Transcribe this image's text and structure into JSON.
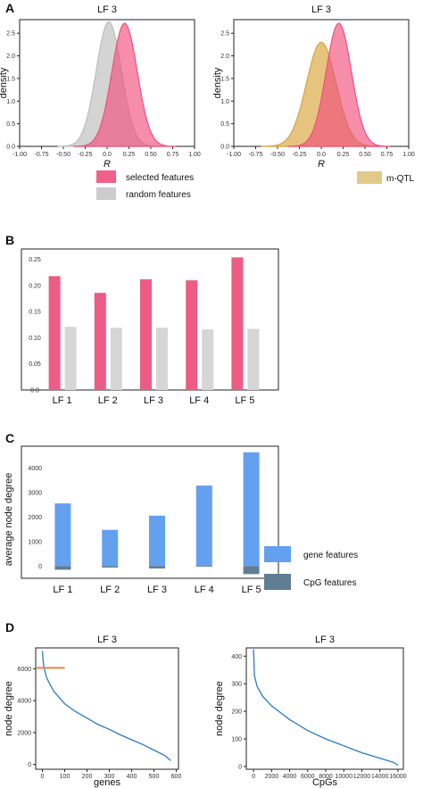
{
  "panels": {
    "A": {
      "label": "A"
    },
    "B": {
      "label": "B"
    },
    "C": {
      "label": "C"
    },
    "D": {
      "label": "D"
    }
  },
  "legends": {
    "a_left": [
      {
        "text": "selected features",
        "color": "#f2608a"
      },
      {
        "text": "random features",
        "color": "#cccccc"
      }
    ],
    "a_right": [
      {
        "text": "m-QTL",
        "color": "#e3c989"
      }
    ],
    "c": [
      {
        "text": "gene features",
        "color": "#64a0f0"
      },
      {
        "text": "CpG features",
        "color": "#5f7e92"
      }
    ]
  },
  "chart_data": [
    {
      "id": "A1",
      "type": "area",
      "title": "LF 3",
      "xlabel": "R",
      "ylabel": "density",
      "xlim": [
        -1.0,
        1.0
      ],
      "ylim": [
        0,
        2.8
      ],
      "xticks": [
        "-1.00",
        "-0.75",
        "-0.50",
        "-0.25",
        "0.0",
        "0.25",
        "0.50",
        "0.75",
        "1.00"
      ],
      "yticks": [
        "0.0",
        "0.5",
        "1.0",
        "1.5",
        "2.0",
        "2.5"
      ],
      "series": [
        {
          "name": "random features",
          "mean": 0.02,
          "sd": 0.145,
          "peak": 2.75,
          "color": "#bdbdbd"
        },
        {
          "name": "selected features",
          "mean": 0.2,
          "sd": 0.145,
          "peak": 2.72,
          "color": "#f0507e"
        }
      ]
    },
    {
      "id": "A2",
      "type": "area",
      "title": "LF 3",
      "xlabel": "R",
      "ylabel": "density",
      "xlim": [
        -1.0,
        1.0
      ],
      "ylim": [
        0,
        2.8
      ],
      "xticks": [
        "-1.00",
        "-0.75",
        "-0.50",
        "-0.25",
        "0.0",
        "0.25",
        "0.50",
        "0.75",
        "1.00"
      ],
      "yticks": [
        "0.0",
        "0.5",
        "1.0",
        "1.5",
        "2.0",
        "2.5"
      ],
      "series": [
        {
          "name": "m-QTL",
          "mean": 0.0,
          "sd": 0.17,
          "peak": 2.3,
          "color": "#d9a43a"
        },
        {
          "name": "selected features",
          "mean": 0.2,
          "sd": 0.145,
          "peak": 2.72,
          "color": "#f0507e"
        }
      ]
    },
    {
      "id": "B",
      "type": "bar",
      "categories": [
        "LF 1",
        "LF 2",
        "LF 3",
        "LF 4",
        "LF 5"
      ],
      "series": [
        {
          "name": "selected features",
          "values": [
            0.218,
            0.186,
            0.212,
            0.21,
            0.254
          ],
          "color": "#ec5c85"
        },
        {
          "name": "random features",
          "values": [
            0.121,
            0.119,
            0.119,
            0.116,
            0.117
          ],
          "color": "#d6d6d6"
        }
      ],
      "ylim": [
        0,
        0.27
      ],
      "yticks": [
        "0.0",
        "0.05",
        "0.10",
        "0.15",
        "0.20",
        "0.25"
      ]
    },
    {
      "id": "C",
      "type": "bar",
      "ylabel": "average node degree",
      "categories": [
        "LF 1",
        "LF 2",
        "LF 3",
        "LF 4",
        "LF 5"
      ],
      "series": [
        {
          "name": "gene features",
          "values": [
            2560,
            1480,
            2060,
            3290,
            4650
          ],
          "color": "#64a0f0"
        },
        {
          "name": "CpG features",
          "values": [
            -150,
            -60,
            -100,
            -30,
            -330
          ],
          "color": "#5f7e92"
        }
      ],
      "ylim": [
        -500,
        4900
      ],
      "yticks": [
        "0",
        "1000",
        "2000",
        "3000",
        "4000"
      ]
    },
    {
      "id": "D1",
      "type": "line",
      "title": "LF 3",
      "xlabel": "genes",
      "ylabel": "node degree",
      "xlim": [
        -30,
        610
      ],
      "ylim": [
        -300,
        7300
      ],
      "xticks": [
        "0",
        "100",
        "200",
        "300",
        "400",
        "500",
        "600"
      ],
      "yticks": [
        "0",
        "2000",
        "4000",
        "6000"
      ],
      "points": [
        [
          0,
          7100
        ],
        [
          3,
          6500
        ],
        [
          8,
          6000
        ],
        [
          20,
          5400
        ],
        [
          50,
          4600
        ],
        [
          100,
          3800
        ],
        [
          150,
          3300
        ],
        [
          200,
          2900
        ],
        [
          250,
          2500
        ],
        [
          300,
          2200
        ],
        [
          350,
          1850
        ],
        [
          400,
          1550
        ],
        [
          450,
          1250
        ],
        [
          500,
          900
        ],
        [
          550,
          550
        ],
        [
          575,
          250
        ]
      ],
      "annotation": {
        "y": 6050,
        "x_from": -30,
        "x_to": 100,
        "color": "#f08040"
      }
    },
    {
      "id": "D2",
      "type": "line",
      "title": "LF 3",
      "xlabel": "CpGs",
      "ylabel": "node degree",
      "xlim": [
        -800,
        16600
      ],
      "ylim": [
        -10,
        430
      ],
      "xticks": [
        "0",
        "2000",
        "4000",
        "6000",
        "8000",
        "10000",
        "12000",
        "14000",
        "16000"
      ],
      "yticks": [
        "0",
        "100",
        "200",
        "300",
        "400"
      ],
      "points": [
        [
          0,
          425
        ],
        [
          100,
          330
        ],
        [
          400,
          290
        ],
        [
          1000,
          255
        ],
        [
          2000,
          220
        ],
        [
          3000,
          195
        ],
        [
          4000,
          170
        ],
        [
          5000,
          150
        ],
        [
          6000,
          130
        ],
        [
          8000,
          100
        ],
        [
          10000,
          75
        ],
        [
          12000,
          50
        ],
        [
          14000,
          30
        ],
        [
          15500,
          15
        ],
        [
          16000,
          5
        ]
      ]
    }
  ]
}
